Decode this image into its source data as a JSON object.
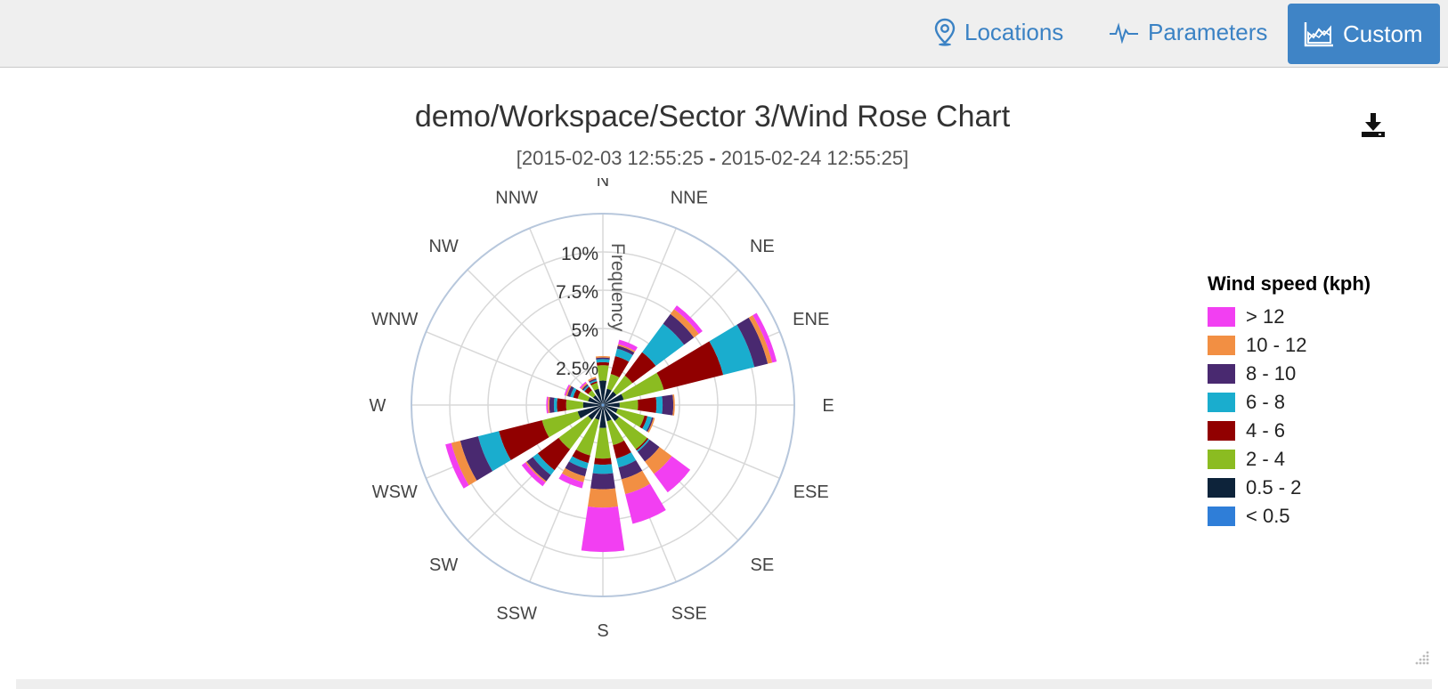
{
  "nav": {
    "locations_label": "Locations",
    "parameters_label": "Parameters",
    "custom_label": "Custom",
    "accent": "#3f84c6"
  },
  "chart_data": {
    "type": "windrose",
    "title": "demo/Workspace/Sector 3/Wind Rose Chart",
    "subtitle_start": "[2015-02-03 12:55:25",
    "subtitle_sep": "-",
    "subtitle_end": "2015-02-24 12:55:25]",
    "radial_axis_label": "Frequency",
    "radial_ticks": [
      "2.5%",
      "5%",
      "7.5%",
      "10%"
    ],
    "radial_max": 12.5,
    "directions": [
      "N",
      "NNE",
      "NE",
      "ENE",
      "E",
      "ESE",
      "SE",
      "SSE",
      "S",
      "SSW",
      "SW",
      "WSW",
      "W",
      "WNW",
      "NW",
      "NNW"
    ],
    "legend_title": "Wind speed (kph)",
    "series": [
      {
        "name": "< 0.5",
        "color": "#2f7ed8",
        "values": [
          0.1,
          0.1,
          0.1,
          0.1,
          0.1,
          0.1,
          0.1,
          0.1,
          0.1,
          0.1,
          0.1,
          0.1,
          0.1,
          0.1,
          0.1,
          0.1
        ]
      },
      {
        "name": "0.5 - 2",
        "color": "#0d233a",
        "values": [
          1.5,
          1.0,
          1.0,
          1.3,
          1.0,
          0.9,
          1.2,
          1.0,
          1.4,
          0.9,
          1.1,
          1.6,
          1.2,
          0.9,
          0.7,
          1.0
        ]
      },
      {
        "name": "2 - 4",
        "color": "#8bbc21",
        "values": [
          1.0,
          1.0,
          1.3,
          2.7,
          1.2,
          1.8,
          2.3,
          1.6,
          2.0,
          2.4,
          2.4,
          2.4,
          1.1,
          0.7,
          0.4,
          0.4
        ]
      },
      {
        "name": "4 - 6",
        "color": "#910000",
        "values": [
          0.2,
          1.2,
          1.9,
          4.0,
          1.2,
          0.2,
          0.1,
          0.9,
          0.4,
          0.5,
          1.7,
          2.9,
          0.6,
          0.3,
          0.3,
          0.1
        ]
      },
      {
        "name": "6 - 8",
        "color": "#1aadce",
        "values": [
          0.2,
          0.5,
          2.3,
          2.1,
          0.4,
          0.3,
          0.1,
          0.6,
          0.6,
          0.4,
          0.4,
          1.4,
          0.2,
          0.2,
          0.1,
          0.1
        ]
      },
      {
        "name": "8 - 10",
        "color": "#492970",
        "values": [
          0.1,
          0.2,
          0.8,
          0.9,
          0.7,
          0.1,
          0.8,
          0.8,
          1.0,
          0.5,
          0.5,
          1.2,
          0.3,
          0.2,
          0.1,
          0.1
        ]
      },
      {
        "name": "10 - 12",
        "color": "#f28f43",
        "values": [
          0.1,
          0.1,
          0.4,
          0.3,
          0.1,
          0.1,
          1.0,
          1.0,
          1.2,
          0.4,
          0.1,
          0.6,
          0.1,
          0.1,
          0.1,
          0.1
        ]
      },
      {
        "name": "> 12",
        "color": "#f23ff2",
        "values": [
          0.0,
          0.3,
          0.3,
          0.3,
          0.0,
          0.0,
          1.5,
          2.0,
          2.9,
          0.4,
          0.3,
          0.4,
          0.1,
          0.1,
          0.1,
          0.0
        ]
      }
    ],
    "legend_order": [
      "> 12",
      "10 - 12",
      "8 - 10",
      "6 - 8",
      "4 - 6",
      "2 - 4",
      "0.5 - 2",
      "< 0.5"
    ],
    "grid": true,
    "legend_position": "right"
  }
}
